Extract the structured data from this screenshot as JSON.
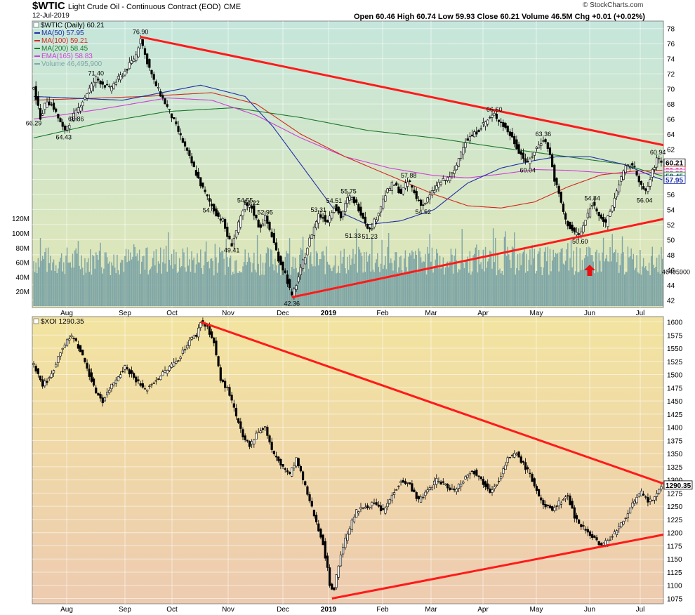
{
  "header": {
    "symbol": "$WTIC",
    "description": "Light Crude Oil - Continuous Contract (EOD)",
    "exchange": "CME",
    "date": "12-Jul-2019",
    "ohlc_text": "Open 60.46   High 60.74   Low 59.93   Close 60.21   Volume 46.5M   Chg +0.01 (+0.02%)",
    "brand": "© StockCharts.com"
  },
  "colors": {
    "panel1_top": "#c5e6dc",
    "panel1_bottom": "#e2e6b3",
    "panel2_top": "#f2e4a0",
    "panel2_bottom": "#edcbb0",
    "trendline": "#ff1a1a",
    "ma50": "#1f2fa8",
    "ma100": "#d42a1e",
    "ma200": "#1b7a2a",
    "ema165": "#d13ed8",
    "volume": "#7fa6a6",
    "arrow": "#e81010"
  },
  "chart_data": [
    {
      "type": "candlestick",
      "symbol": "$WTIC",
      "legend_title": "$WTIC (Daily) 60.21",
      "legend": [
        {
          "name": "MA(50) 57.95",
          "color": "#1f2fa8"
        },
        {
          "name": "MA(100) 59.21",
          "color": "#d42a1e"
        },
        {
          "name": "MA(200) 58.45",
          "color": "#1b7a2a"
        },
        {
          "name": "EMA(165) 58.83",
          "color": "#d13ed8"
        },
        {
          "name": "Volume 46,495,900",
          "color": "#7fa6a6"
        }
      ],
      "x_labels": [
        "Aug",
        "Sep",
        "Oct",
        "Nov",
        "Dec",
        "2019",
        "Feb",
        "Mar",
        "Apr",
        "May",
        "Jun",
        "Jul"
      ],
      "y_ticks": [
        "78",
        "76",
        "74",
        "72",
        "70",
        "68",
        "66",
        "64",
        "62",
        "60",
        "58",
        "56",
        "54",
        "52",
        "50",
        "48",
        "46",
        "44",
        "42"
      ],
      "ylim": [
        41,
        79
      ],
      "volume_ticks": [
        "120M",
        "100M",
        "80M",
        "60M",
        "40M",
        "20M"
      ],
      "volume_last_label": "46495900",
      "price_anchors": [
        [
          0,
          70.5
        ],
        [
          3,
          68
        ],
        [
          6,
          66.3
        ],
        [
          12,
          68.5
        ],
        [
          18,
          67.5
        ],
        [
          27,
          64.43
        ],
        [
          38,
          66.86
        ],
        [
          48,
          69.5
        ],
        [
          56,
          71.4
        ],
        [
          68,
          70
        ],
        [
          83,
          72.5
        ],
        [
          92,
          74.5
        ],
        [
          96,
          76.9
        ],
        [
          100,
          74.5
        ],
        [
          108,
          71
        ],
        [
          115,
          69
        ],
        [
          122,
          67
        ],
        [
          131,
          64
        ],
        [
          141,
          60.5
        ],
        [
          151,
          57
        ],
        [
          159,
          54.75
        ],
        [
          165,
          53.2
        ],
        [
          170,
          52.5
        ],
        [
          175,
          50
        ],
        [
          178,
          49.41
        ],
        [
          184,
          52
        ],
        [
          190,
          54.55
        ],
        [
          196,
          54.22
        ],
        [
          203,
          51.5
        ],
        [
          208,
          52.95
        ],
        [
          214,
          50.5
        ],
        [
          220,
          47.5
        ],
        [
          226,
          45.5
        ],
        [
          232,
          42.36
        ],
        [
          239,
          45.5
        ],
        [
          248,
          50
        ],
        [
          256,
          53.31
        ],
        [
          264,
          52.5
        ],
        [
          270,
          54.51
        ],
        [
          276,
          53
        ],
        [
          283,
          55.75
        ],
        [
          289,
          55
        ],
        [
          296,
          53
        ],
        [
          302,
          51.23
        ],
        [
          308,
          53
        ],
        [
          316,
          56
        ],
        [
          323,
          57.5
        ],
        [
          330,
          56.2
        ],
        [
          337,
          57.88
        ],
        [
          344,
          55.5
        ],
        [
          350,
          54.52
        ],
        [
          357,
          56
        ],
        [
          364,
          57.5
        ],
        [
          371,
          58
        ],
        [
          378,
          59
        ],
        [
          387,
          63
        ],
        [
          396,
          64
        ],
        [
          405,
          65.5
        ],
        [
          414,
          66.6
        ],
        [
          423,
          65
        ],
        [
          430,
          63.5
        ],
        [
          437,
          61.5
        ],
        [
          444,
          60.04
        ],
        [
          451,
          62
        ],
        [
          458,
          63.36
        ],
        [
          463,
          62
        ],
        [
          468,
          58
        ],
        [
          473,
          55.5
        ],
        [
          478,
          52.5
        ],
        [
          485,
          51
        ],
        [
          491,
          50.6
        ],
        [
          497,
          53
        ],
        [
          502,
          54.84
        ],
        [
          508,
          53.5
        ],
        [
          514,
          52
        ],
        [
          521,
          55
        ],
        [
          527,
          58
        ],
        [
          532,
          59.5
        ],
        [
          538,
          60
        ],
        [
          544,
          58
        ],
        [
          549,
          56.04
        ],
        [
          553,
          57.5
        ],
        [
          557,
          59.5
        ],
        [
          561,
          60.94
        ],
        [
          565,
          60.21
        ]
      ],
      "price_labels": [
        {
          "t": 96,
          "v": 76.9,
          "text": "76.90"
        },
        {
          "t": 0,
          "v": 66.29,
          "text": "66.29"
        },
        {
          "t": 27,
          "v": 64.43,
          "text": "64.43"
        },
        {
          "t": 38,
          "v": 66.86,
          "text": "66.86"
        },
        {
          "t": 56,
          "v": 71.4,
          "text": "71.40"
        },
        {
          "t": 159,
          "v": 54.75,
          "text": "54.75"
        },
        {
          "t": 178,
          "v": 49.41,
          "text": "49.41"
        },
        {
          "t": 190,
          "v": 54.55,
          "text": "54.55"
        },
        {
          "t": 196,
          "v": 54.22,
          "text": "54.22"
        },
        {
          "t": 208,
          "v": 52.95,
          "text": "52.95"
        },
        {
          "t": 232,
          "v": 42.36,
          "text": "42.36"
        },
        {
          "t": 256,
          "v": 53.31,
          "text": "53.31"
        },
        {
          "t": 270,
          "v": 54.51,
          "text": "54.51"
        },
        {
          "t": 283,
          "v": 55.75,
          "text": "55.75"
        },
        {
          "t": 287,
          "v": 51.33,
          "text": "51.33"
        },
        {
          "t": 302,
          "v": 51.23,
          "text": "51.23"
        },
        {
          "t": 337,
          "v": 57.88,
          "text": "57.88"
        },
        {
          "t": 350,
          "v": 54.52,
          "text": "54.52"
        },
        {
          "t": 414,
          "v": 66.6,
          "text": "66.60"
        },
        {
          "t": 444,
          "v": 60.04,
          "text": "60.04"
        },
        {
          "t": 458,
          "v": 63.36,
          "text": "63.36"
        },
        {
          "t": 491,
          "v": 50.6,
          "text": "50.60"
        },
        {
          "t": 502,
          "v": 54.84,
          "text": "54.84"
        },
        {
          "t": 549,
          "v": 56.04,
          "text": "56.04"
        },
        {
          "t": 561,
          "v": 60.94,
          "text": "60.94"
        }
      ],
      "last_value_labels": [
        "60.21",
        "59.21",
        "58.83",
        "58.45",
        "57.95"
      ],
      "ma50_anchors": [
        [
          0,
          69
        ],
        [
          80,
          68.5
        ],
        [
          150,
          70.5
        ],
        [
          190,
          69
        ],
        [
          215,
          65
        ],
        [
          240,
          60
        ],
        [
          270,
          54
        ],
        [
          300,
          52
        ],
        [
          330,
          52.5
        ],
        [
          360,
          54
        ],
        [
          390,
          57.5
        ],
        [
          420,
          59.5
        ],
        [
          450,
          60.5
        ],
        [
          470,
          61
        ],
        [
          500,
          61
        ],
        [
          530,
          60
        ],
        [
          560,
          58.2
        ],
        [
          565,
          57.95
        ]
      ],
      "ma100_anchors": [
        [
          0,
          68.5
        ],
        [
          100,
          69
        ],
        [
          160,
          69.5
        ],
        [
          200,
          68
        ],
        [
          240,
          64
        ],
        [
          280,
          61
        ],
        [
          320,
          58.5
        ],
        [
          360,
          56
        ],
        [
          390,
          54.5
        ],
        [
          420,
          54.2
        ],
        [
          450,
          55
        ],
        [
          480,
          57
        ],
        [
          510,
          58.6
        ],
        [
          540,
          59.1
        ],
        [
          565,
          59.21
        ]
      ],
      "ma200_anchors": [
        [
          0,
          63.5
        ],
        [
          60,
          65.5
        ],
        [
          120,
          67
        ],
        [
          180,
          67.5
        ],
        [
          240,
          66.2
        ],
        [
          300,
          64.5
        ],
        [
          360,
          63.5
        ],
        [
          420,
          62.2
        ],
        [
          480,
          61
        ],
        [
          530,
          60
        ],
        [
          565,
          58.45
        ]
      ],
      "ema165_anchors": [
        [
          0,
          66
        ],
        [
          60,
          67.3
        ],
        [
          120,
          68.8
        ],
        [
          160,
          68.5
        ],
        [
          200,
          66.5
        ],
        [
          240,
          63.5
        ],
        [
          280,
          61
        ],
        [
          320,
          59.5
        ],
        [
          360,
          58.5
        ],
        [
          390,
          58.2
        ],
        [
          420,
          58.7
        ],
        [
          450,
          59.3
        ],
        [
          480,
          59.2
        ],
        [
          520,
          58.8
        ],
        [
          565,
          58.83
        ]
      ],
      "trendlines": [
        {
          "t0": 96,
          "v0": 76.9,
          "t1": 600,
          "v1": 61.5
        },
        {
          "t0": 232,
          "v0": 42.36,
          "t1": 600,
          "v1": 53.8
        }
      ]
    },
    {
      "type": "candlestick",
      "symbol": "$XOI",
      "legend_title": "$XOI 1290.35",
      "x_labels": [
        "Aug",
        "Sep",
        "Oct",
        "Nov",
        "Dec",
        "2019",
        "Feb",
        "Mar",
        "Apr",
        "May",
        "Jun",
        "Jul"
      ],
      "y_ticks": [
        "1600",
        "1575",
        "1550",
        "1525",
        "1500",
        "1475",
        "1450",
        "1425",
        "1400",
        "1375",
        "1350",
        "1325",
        "1300",
        "1275",
        "1250",
        "1225",
        "1200",
        "1175",
        "1150",
        "1125",
        "1100",
        "1075"
      ],
      "ylim": [
        1065,
        1610
      ],
      "last_value_label": "1290.35",
      "price_anchors": [
        [
          0,
          1520
        ],
        [
          8,
          1480
        ],
        [
          15,
          1495
        ],
        [
          25,
          1550
        ],
        [
          35,
          1575
        ],
        [
          45,
          1530
        ],
        [
          55,
          1470
        ],
        [
          62,
          1450
        ],
        [
          70,
          1480
        ],
        [
          82,
          1515
        ],
        [
          90,
          1495
        ],
        [
          100,
          1470
        ],
        [
          110,
          1490
        ],
        [
          120,
          1510
        ],
        [
          130,
          1530
        ],
        [
          140,
          1565
        ],
        [
          146,
          1575
        ],
        [
          150,
          1600
        ],
        [
          156,
          1590
        ],
        [
          162,
          1560
        ],
        [
          168,
          1490
        ],
        [
          175,
          1470
        ],
        [
          182,
          1420
        ],
        [
          188,
          1380
        ],
        [
          195,
          1365
        ],
        [
          200,
          1390
        ],
        [
          208,
          1400
        ],
        [
          215,
          1350
        ],
        [
          222,
          1330
        ],
        [
          230,
          1310
        ],
        [
          236,
          1340
        ],
        [
          242,
          1300
        ],
        [
          248,
          1260
        ],
        [
          254,
          1220
        ],
        [
          260,
          1180
        ],
        [
          264,
          1130
        ],
        [
          267,
          1090
        ],
        [
          270,
          1095
        ],
        [
          276,
          1160
        ],
        [
          282,
          1200
        ],
        [
          290,
          1240
        ],
        [
          298,
          1250
        ],
        [
          306,
          1255
        ],
        [
          314,
          1240
        ],
        [
          322,
          1270
        ],
        [
          330,
          1300
        ],
        [
          338,
          1290
        ],
        [
          346,
          1260
        ],
        [
          354,
          1280
        ],
        [
          362,
          1300
        ],
        [
          370,
          1290
        ],
        [
          378,
          1280
        ],
        [
          386,
          1300
        ],
        [
          394,
          1320
        ],
        [
          402,
          1300
        ],
        [
          410,
          1280
        ],
        [
          418,
          1300
        ],
        [
          426,
          1340
        ],
        [
          434,
          1350
        ],
        [
          440,
          1330
        ],
        [
          446,
          1310
        ],
        [
          452,
          1280
        ],
        [
          458,
          1250
        ],
        [
          466,
          1245
        ],
        [
          474,
          1260
        ],
        [
          480,
          1270
        ],
        [
          486,
          1230
        ],
        [
          492,
          1215
        ],
        [
          498,
          1200
        ],
        [
          504,
          1190
        ],
        [
          510,
          1175
        ],
        [
          516,
          1185
        ],
        [
          522,
          1200
        ],
        [
          528,
          1215
        ],
        [
          534,
          1240
        ],
        [
          540,
          1260
        ],
        [
          546,
          1275
        ],
        [
          552,
          1260
        ],
        [
          558,
          1265
        ],
        [
          565,
          1290
        ]
      ],
      "trendlines": [
        {
          "t0": 150,
          "v0": 1600,
          "t1": 600,
          "v1": 1268
        },
        {
          "t0": 268,
          "v0": 1075,
          "t1": 600,
          "v1": 1210
        }
      ]
    }
  ]
}
